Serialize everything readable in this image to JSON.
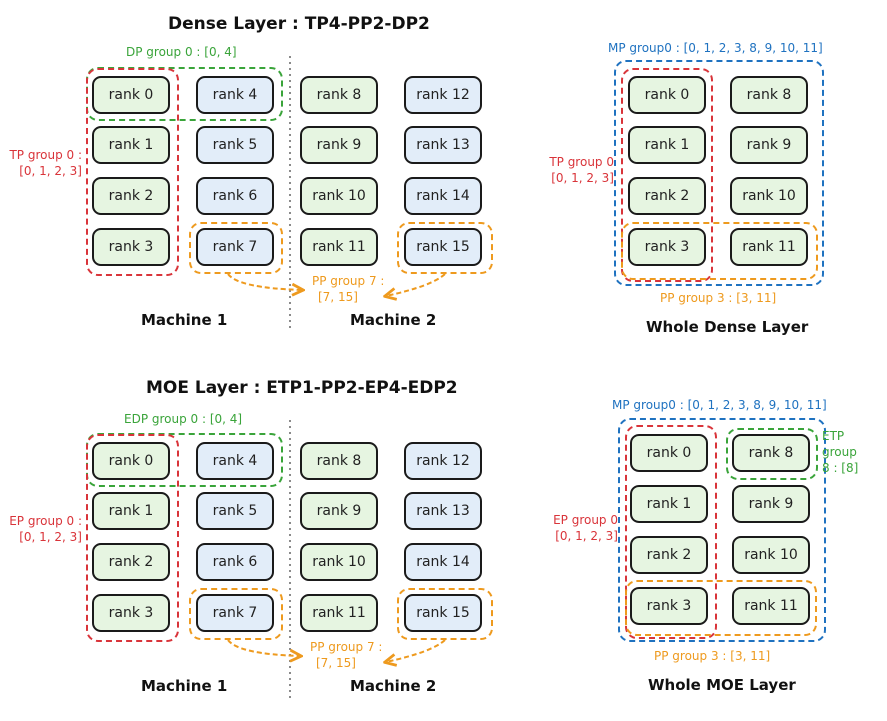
{
  "dense": {
    "title": "Dense Layer : TP4-PP2-DP2",
    "dp_label": "DP group 0 : [0, 4]",
    "tp_label_1": "TP group 0 :",
    "tp_label_2": "[0, 1, 2, 3]",
    "pp_label_1": "PP group 7 :",
    "pp_label_2": "[7, 15]",
    "machine1": "Machine 1",
    "machine2": "Machine 2",
    "whole": {
      "mp_label": "MP group0 : [0, 1, 2, 3, 8, 9, 10, 11]",
      "tp_label_1": "TP group 0",
      "tp_label_2": "[0, 1, 2, 3]",
      "pp_label": "PP group 3 : [3, 11]",
      "title": "Whole Dense Layer"
    }
  },
  "moe": {
    "title": "MOE Layer : ETP1-PP2-EP4-EDP2",
    "edp_label": "EDP group 0 : [0, 4]",
    "ep_label_1": "EP group 0 :",
    "ep_label_2": "[0, 1, 2, 3]",
    "pp_label_1": "PP group 7 :",
    "pp_label_2": "[7, 15]",
    "machine1": "Machine 1",
    "machine2": "Machine 2",
    "whole": {
      "mp_label": "MP group0 : [0, 1, 2, 3, 8, 9, 10, 11]",
      "ep_label_1": "EP group 0",
      "ep_label_2": "[0, 1, 2, 3]",
      "etp_label_1": "ETP",
      "etp_label_2": "group",
      "etp_label_3": "8 : [8]",
      "pp_label": "PP group 3 : [3, 11]",
      "title": "Whole MOE Layer"
    }
  },
  "ranks": {
    "r0": "rank 0",
    "r1": "rank 1",
    "r2": "rank 2",
    "r3": "rank 3",
    "r4": "rank 4",
    "r5": "rank 5",
    "r6": "rank 6",
    "r7": "rank 7",
    "r8": "rank 8",
    "r9": "rank 9",
    "r10": "rank 10",
    "r11": "rank 11",
    "r12": "rank 12",
    "r13": "rank 13",
    "r14": "rank 14",
    "r15": "rank 15"
  },
  "colors": {
    "tp_ep_red": "#d9343a",
    "dp_green": "#3aa43a",
    "pp_orange": "#ee9a1e",
    "mp_blue": "#1f72c0",
    "rank_green_fill": "#e6f5e1",
    "rank_blue_fill": "#e2edf9"
  }
}
